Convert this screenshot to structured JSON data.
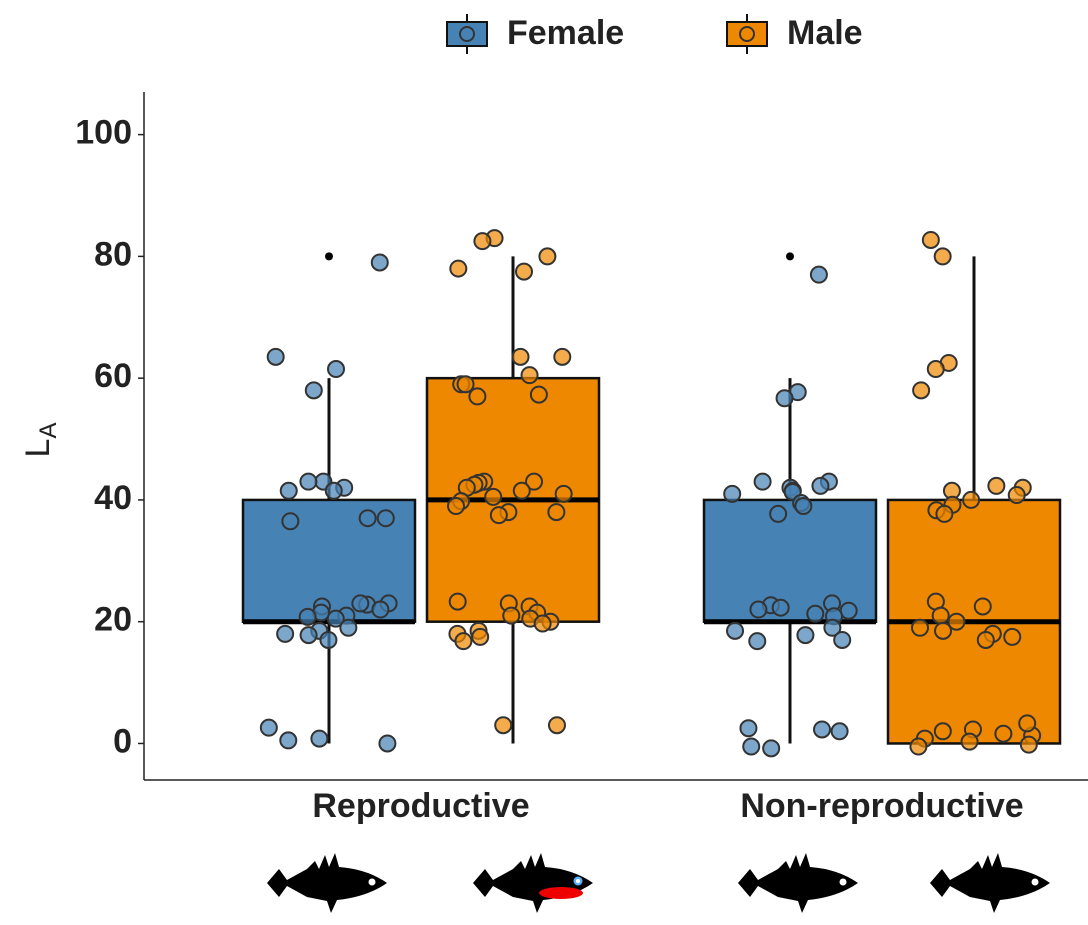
{
  "chart_data": {
    "type": "box",
    "y_label": {
      "text": "L",
      "subscript": "A"
    },
    "categories": [
      "Reproductive",
      "Non-reproductive"
    ],
    "ylim": [
      -6,
      107
    ],
    "yticks": [
      0,
      20,
      40,
      60,
      80,
      100
    ],
    "series": [
      {
        "name": "Female",
        "color": "#4682b4",
        "boxes": [
          {
            "whislo": 0,
            "q1": 20,
            "med": 20,
            "q3": 40,
            "whishi": 60,
            "fliers": [
              80
            ]
          },
          {
            "whislo": 0,
            "q1": 20,
            "med": 20,
            "q3": 40,
            "whishi": 60,
            "fliers": [
              80
            ]
          }
        ],
        "points": [
          [
            79,
            63.5,
            61.5,
            58,
            43,
            42,
            41.5,
            43,
            41.5,
            37,
            37,
            36.5,
            23,
            22.8,
            22.5,
            22,
            21.5,
            21,
            20.8,
            23,
            20.5,
            19,
            18.5,
            18,
            17.8,
            17,
            2.6,
            0.5,
            0.8,
            0
          ],
          [
            77,
            57.7,
            56.7,
            43,
            43,
            42.3,
            42,
            41.5,
            41.3,
            41,
            39.5,
            39,
            37.7,
            23,
            22.7,
            22.3,
            22,
            21.8,
            21.3,
            20.9,
            19,
            18.5,
            17.8,
            17,
            16.8,
            2.3,
            2.5,
            2,
            -0.5,
            -0.8
          ]
        ]
      },
      {
        "name": "Male",
        "color": "#ee8800",
        "boxes": [
          {
            "whislo": 0,
            "q1": 20,
            "med": 40,
            "q3": 60,
            "whishi": 80,
            "fliers": []
          },
          {
            "whislo": 0,
            "q1": 0,
            "med": 20,
            "q3": 40,
            "whishi": 80,
            "fliers": []
          }
        ],
        "points": [
          [
            83,
            80,
            78,
            77.5,
            82.5,
            63.5,
            63.5,
            60.5,
            59,
            59,
            57.3,
            57,
            43,
            43,
            42.8,
            42.5,
            42,
            41.5,
            41,
            40.5,
            39.8,
            39,
            38,
            37.5,
            38,
            23.3,
            23,
            22.5,
            21.5,
            21,
            20.5,
            20,
            19.7,
            18.5,
            18,
            17.5,
            16.8,
            3,
            3
          ],
          [
            82.7,
            80,
            62.5,
            61.5,
            58,
            42.3,
            42,
            41.5,
            40.8,
            40,
            39.2,
            38.3,
            37.7,
            23.3,
            22.5,
            21,
            20,
            19,
            18.5,
            18,
            17.5,
            17,
            2.3,
            2,
            1.6,
            1.3,
            0.8,
            0.3,
            -0.2,
            -0.5,
            3.3
          ]
        ]
      }
    ]
  }
}
